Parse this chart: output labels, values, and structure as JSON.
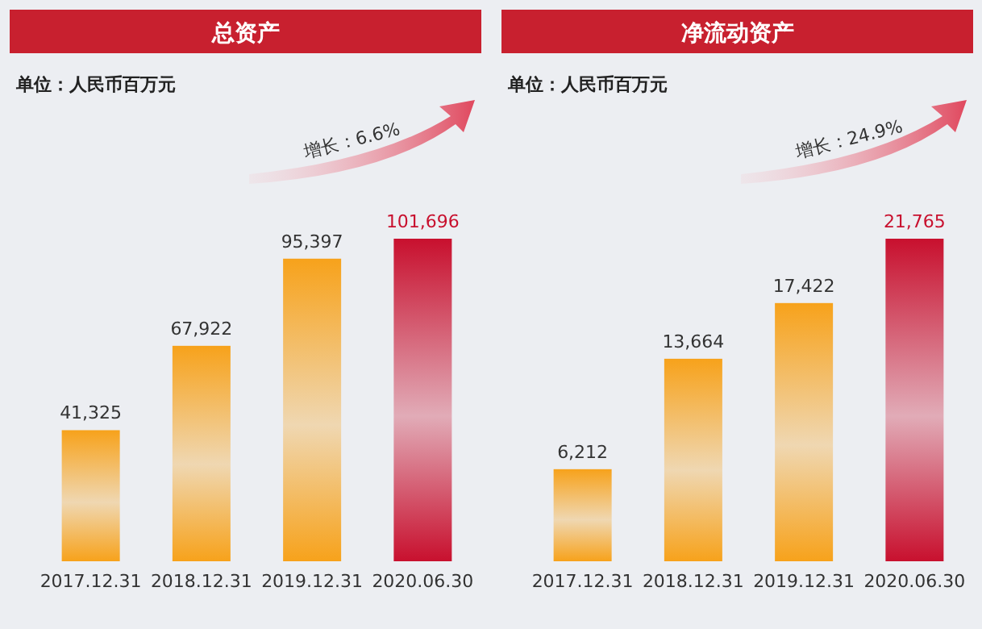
{
  "chart_data": [
    {
      "type": "bar",
      "title": "总资产",
      "annotations": [
        "单位：人民币百万元",
        "增长：6.6%"
      ],
      "categories": [
        "2017.12.31",
        "2018.12.31",
        "2019.12.31",
        "2020.06.30"
      ],
      "values": [
        41325,
        67922,
        95397,
        101696
      ],
      "value_labels": [
        "41,325",
        "67,922",
        "95,397",
        "101,696"
      ],
      "colors": [
        "#f7a21b",
        "#f7a21b",
        "#f7a21b",
        "#c8102e"
      ]
    },
    {
      "type": "bar",
      "title": "净流动资产",
      "annotations": [
        "单位：人民币百万元",
        "增长：24.9%"
      ],
      "categories": [
        "2017.12.31",
        "2018.12.31",
        "2019.12.31",
        "2020.06.30"
      ],
      "values": [
        6212,
        13664,
        17422,
        21765
      ],
      "value_labels": [
        "6,212",
        "13,664",
        "17,422",
        "21,765"
      ],
      "colors": [
        "#f7a21b",
        "#f7a21b",
        "#f7a21b",
        "#c8102e"
      ]
    }
  ]
}
